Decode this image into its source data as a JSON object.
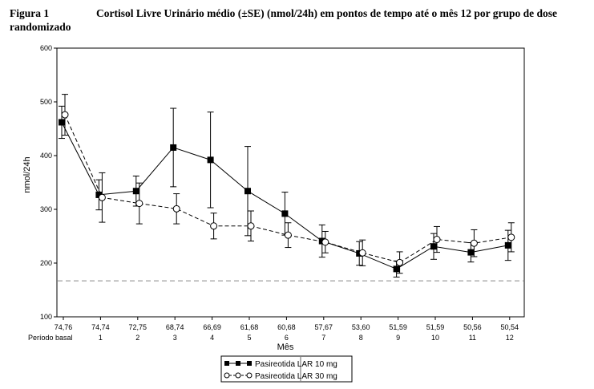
{
  "caption": {
    "label": "Figura 1",
    "text": "Cortisol Livre Urinário médio (±SE) (nmol/24h) em pontos de tempo até o mês 12 por grupo de dose randomizado"
  },
  "chart_data": {
    "type": "line",
    "title": "",
    "xlabel": "Mês",
    "ylabel": "nmol/24h",
    "ylim": [
      100,
      600
    ],
    "yticks": [
      100,
      200,
      300,
      400,
      500,
      600
    ],
    "grid": false,
    "legend_position": "bottom-center",
    "categories": [
      "Período basal",
      "1",
      "2",
      "3",
      "4",
      "5",
      "6",
      "7",
      "8",
      "9",
      "10",
      "11",
      "12"
    ],
    "x_counts": [
      "74,76",
      "74,74",
      "72,75",
      "68,74",
      "66,69",
      "61,68",
      "60,68",
      "57,67",
      "53,60",
      "51,59",
      "51,59",
      "50,56",
      "50,54"
    ],
    "reference_line": 167,
    "series": [
      {
        "name": "Pasireotida LAR 10 mg",
        "style": "solid",
        "marker": "filled-square",
        "color": "#000000",
        "values": [
          462,
          327,
          334,
          415,
          392,
          334,
          292,
          241,
          218,
          189,
          231,
          220,
          233
        ],
        "upper": [
          492,
          355,
          362,
          488,
          481,
          417,
          332,
          271,
          240,
          204,
          255,
          238,
          261
        ],
        "lower": [
          432,
          299,
          306,
          342,
          303,
          251,
          252,
          211,
          196,
          174,
          207,
          202,
          205
        ]
      },
      {
        "name": "Pasireotida LAR 30 mg",
        "style": "dashed",
        "marker": "open-circle",
        "color": "#000000",
        "values": [
          476,
          322,
          311,
          301,
          269,
          269,
          252,
          239,
          219,
          201,
          244,
          237,
          248
        ],
        "upper": [
          514,
          368,
          349,
          329,
          293,
          297,
          275,
          259,
          243,
          221,
          268,
          262,
          275
        ],
        "lower": [
          438,
          276,
          273,
          273,
          245,
          241,
          229,
          219,
          195,
          181,
          220,
          212,
          221
        ]
      }
    ]
  }
}
